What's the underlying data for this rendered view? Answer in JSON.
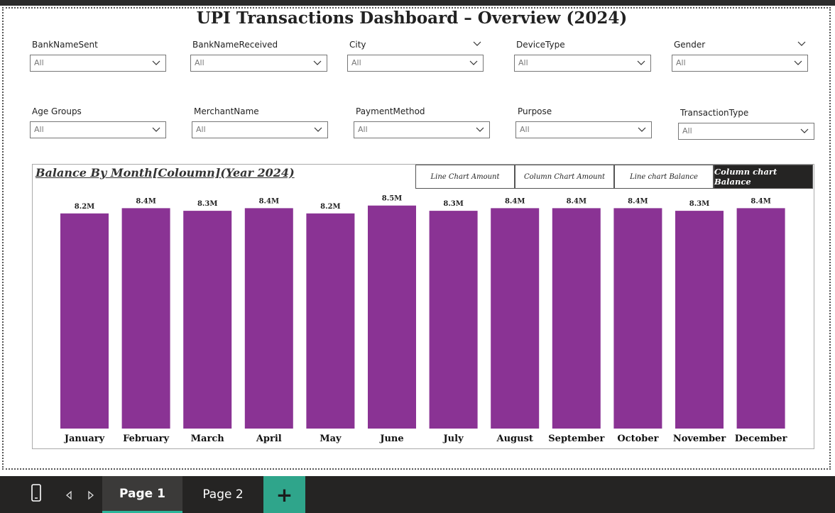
{
  "dashboard": {
    "title": "UPI Transactions Dashboard – Overview (2024)"
  },
  "slicers": [
    {
      "label": "BankNameSent",
      "value": "All"
    },
    {
      "label": "BankNameReceived",
      "value": "All"
    },
    {
      "label": "City",
      "value": "All"
    },
    {
      "label": "DeviceType",
      "value": "All"
    },
    {
      "label": "Gender",
      "value": "All"
    },
    {
      "label": "Age Groups",
      "value": "All"
    },
    {
      "label": "MerchantName",
      "value": "All"
    },
    {
      "label": "PaymentMethod",
      "value": "All"
    },
    {
      "label": "Purpose",
      "value": "All"
    },
    {
      "label": "TransactionType",
      "value": "All"
    }
  ],
  "chart_toggles": [
    {
      "label": "Line Chart Amount",
      "active": false
    },
    {
      "label": "Column Chart Amount",
      "active": false
    },
    {
      "label": "Line chart Balance",
      "active": false
    },
    {
      "label": "Column chart Balance",
      "active": true
    }
  ],
  "chart_data": {
    "type": "bar",
    "title": "Balance By Month[Coloumn](Year 2024)",
    "categories": [
      "January",
      "February",
      "March",
      "April",
      "May",
      "June",
      "July",
      "August",
      "September",
      "October",
      "November",
      "December"
    ],
    "values": [
      8.2,
      8.4,
      8.3,
      8.4,
      8.2,
      8.5,
      8.3,
      8.4,
      8.4,
      8.4,
      8.3,
      8.4
    ],
    "value_unit": "M",
    "data_labels": [
      "8.2M",
      "8.4M",
      "8.3M",
      "8.4M",
      "8.2M",
      "8.5M",
      "8.3M",
      "8.4M",
      "8.4M",
      "8.4M",
      "8.3M",
      "8.4M"
    ],
    "ylim": [
      0,
      8.6
    ],
    "bar_color": "#8a3394",
    "xlabel": "",
    "ylabel": ""
  },
  "pages": {
    "tabs": [
      "Page 1",
      "Page 2"
    ],
    "active": "Page 1",
    "add_label": "+"
  },
  "icons": [
    "mobile-icon",
    "prev-page-icon",
    "next-page-icon",
    "chevron-down-icon"
  ]
}
